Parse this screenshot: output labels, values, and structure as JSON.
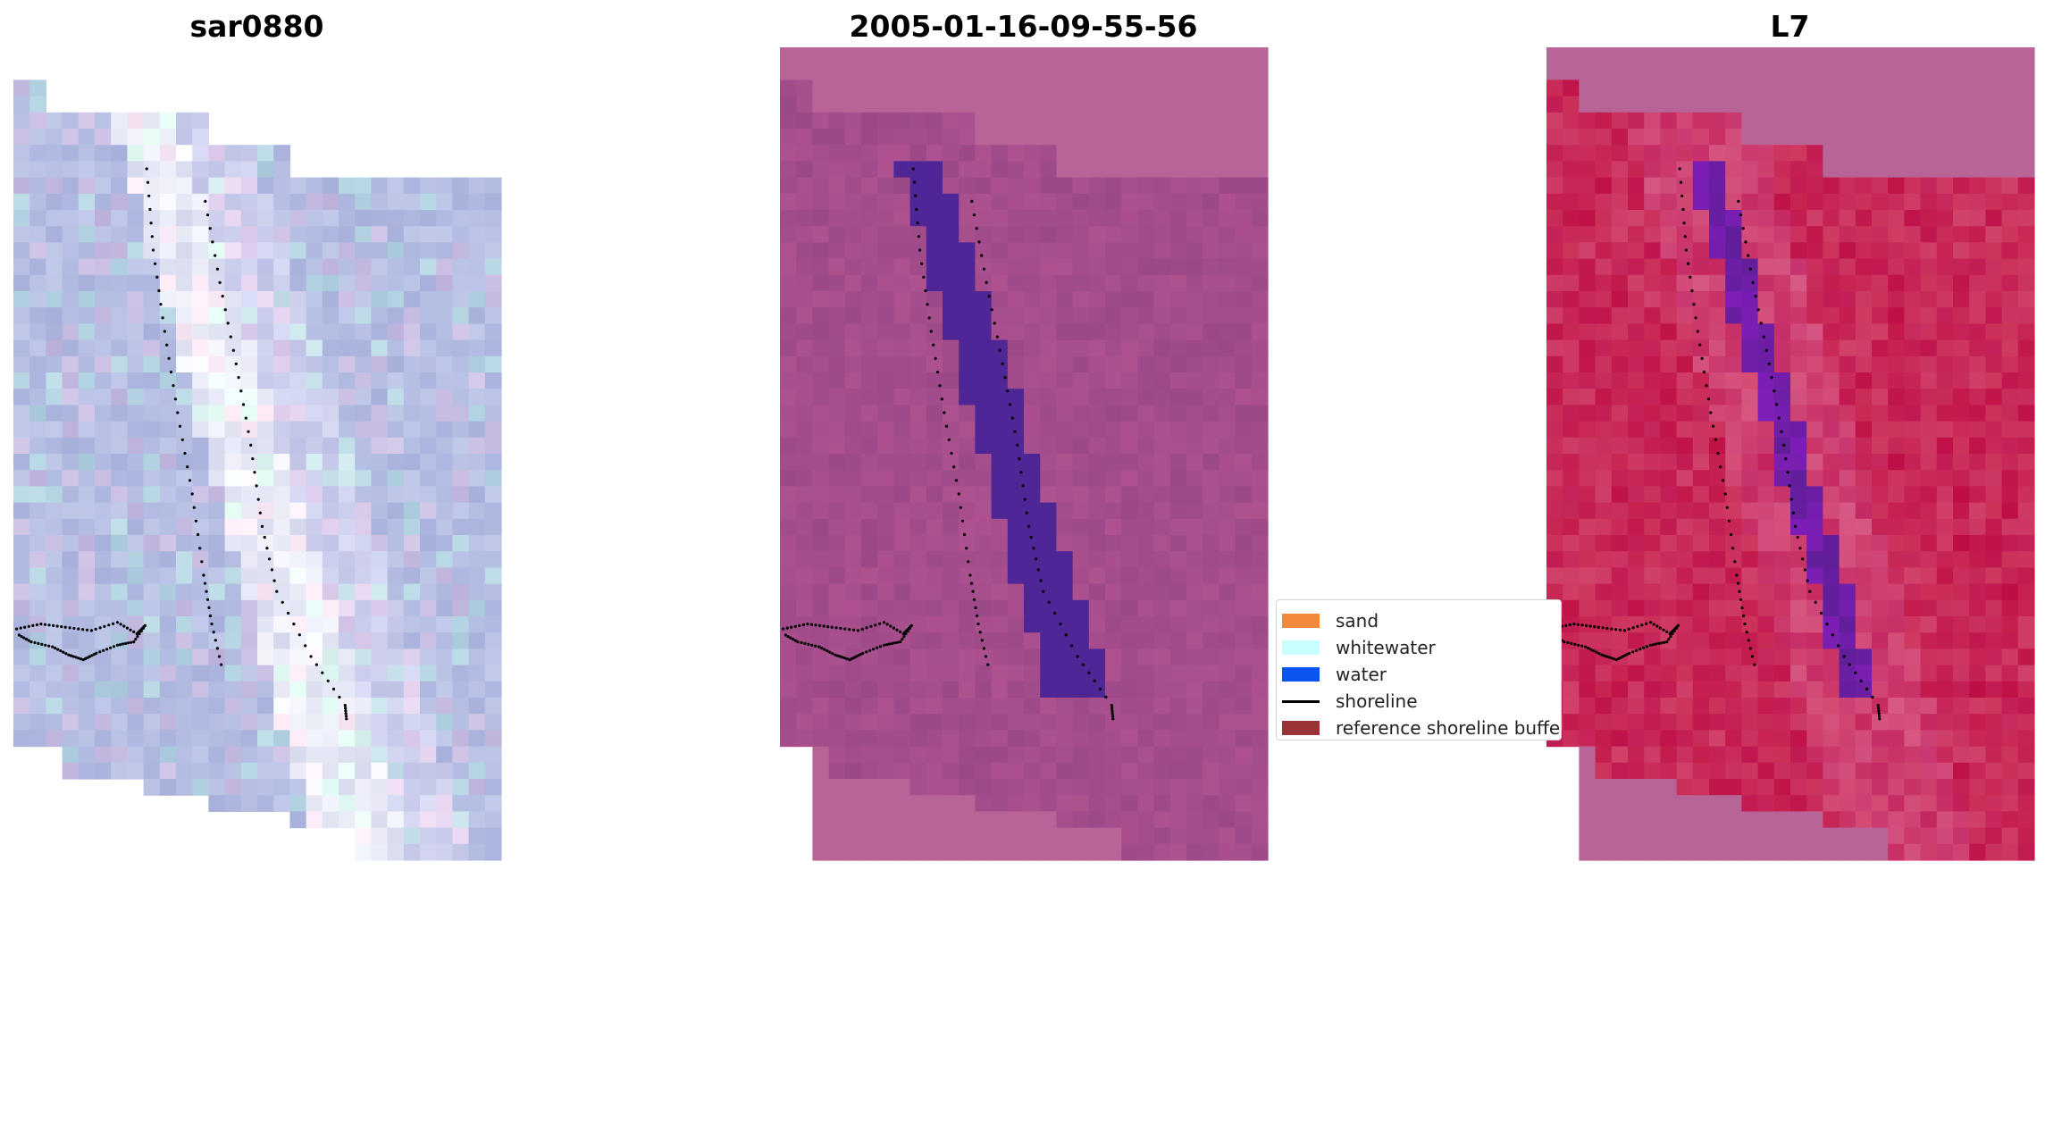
{
  "panels": [
    {
      "title": "sar0880"
    },
    {
      "title": "2005-01-16-09-55-56"
    },
    {
      "title": "L7"
    }
  ],
  "legend": {
    "items": [
      {
        "label": "sand",
        "kind": "patch",
        "color": "#f28a3c"
      },
      {
        "label": "whitewater",
        "kind": "patch",
        "color": "#c9ffff"
      },
      {
        "label": "water",
        "kind": "patch",
        "color": "#0a55f0"
      },
      {
        "label": "shoreline",
        "kind": "line",
        "color": "#000000"
      },
      {
        "label": "reference shoreline buffer",
        "kind": "patch",
        "color": "#9a3336"
      }
    ]
  },
  "colors": {
    "rgb_base": "#b4bde2",
    "classified_background": "#b96497",
    "classified_land": "#a54d8c",
    "classified_water": "#4e2696",
    "mndwi_background": "#b96497",
    "mndwi_land": "#c6214f",
    "mndwi_water": "#6f1ea8"
  }
}
